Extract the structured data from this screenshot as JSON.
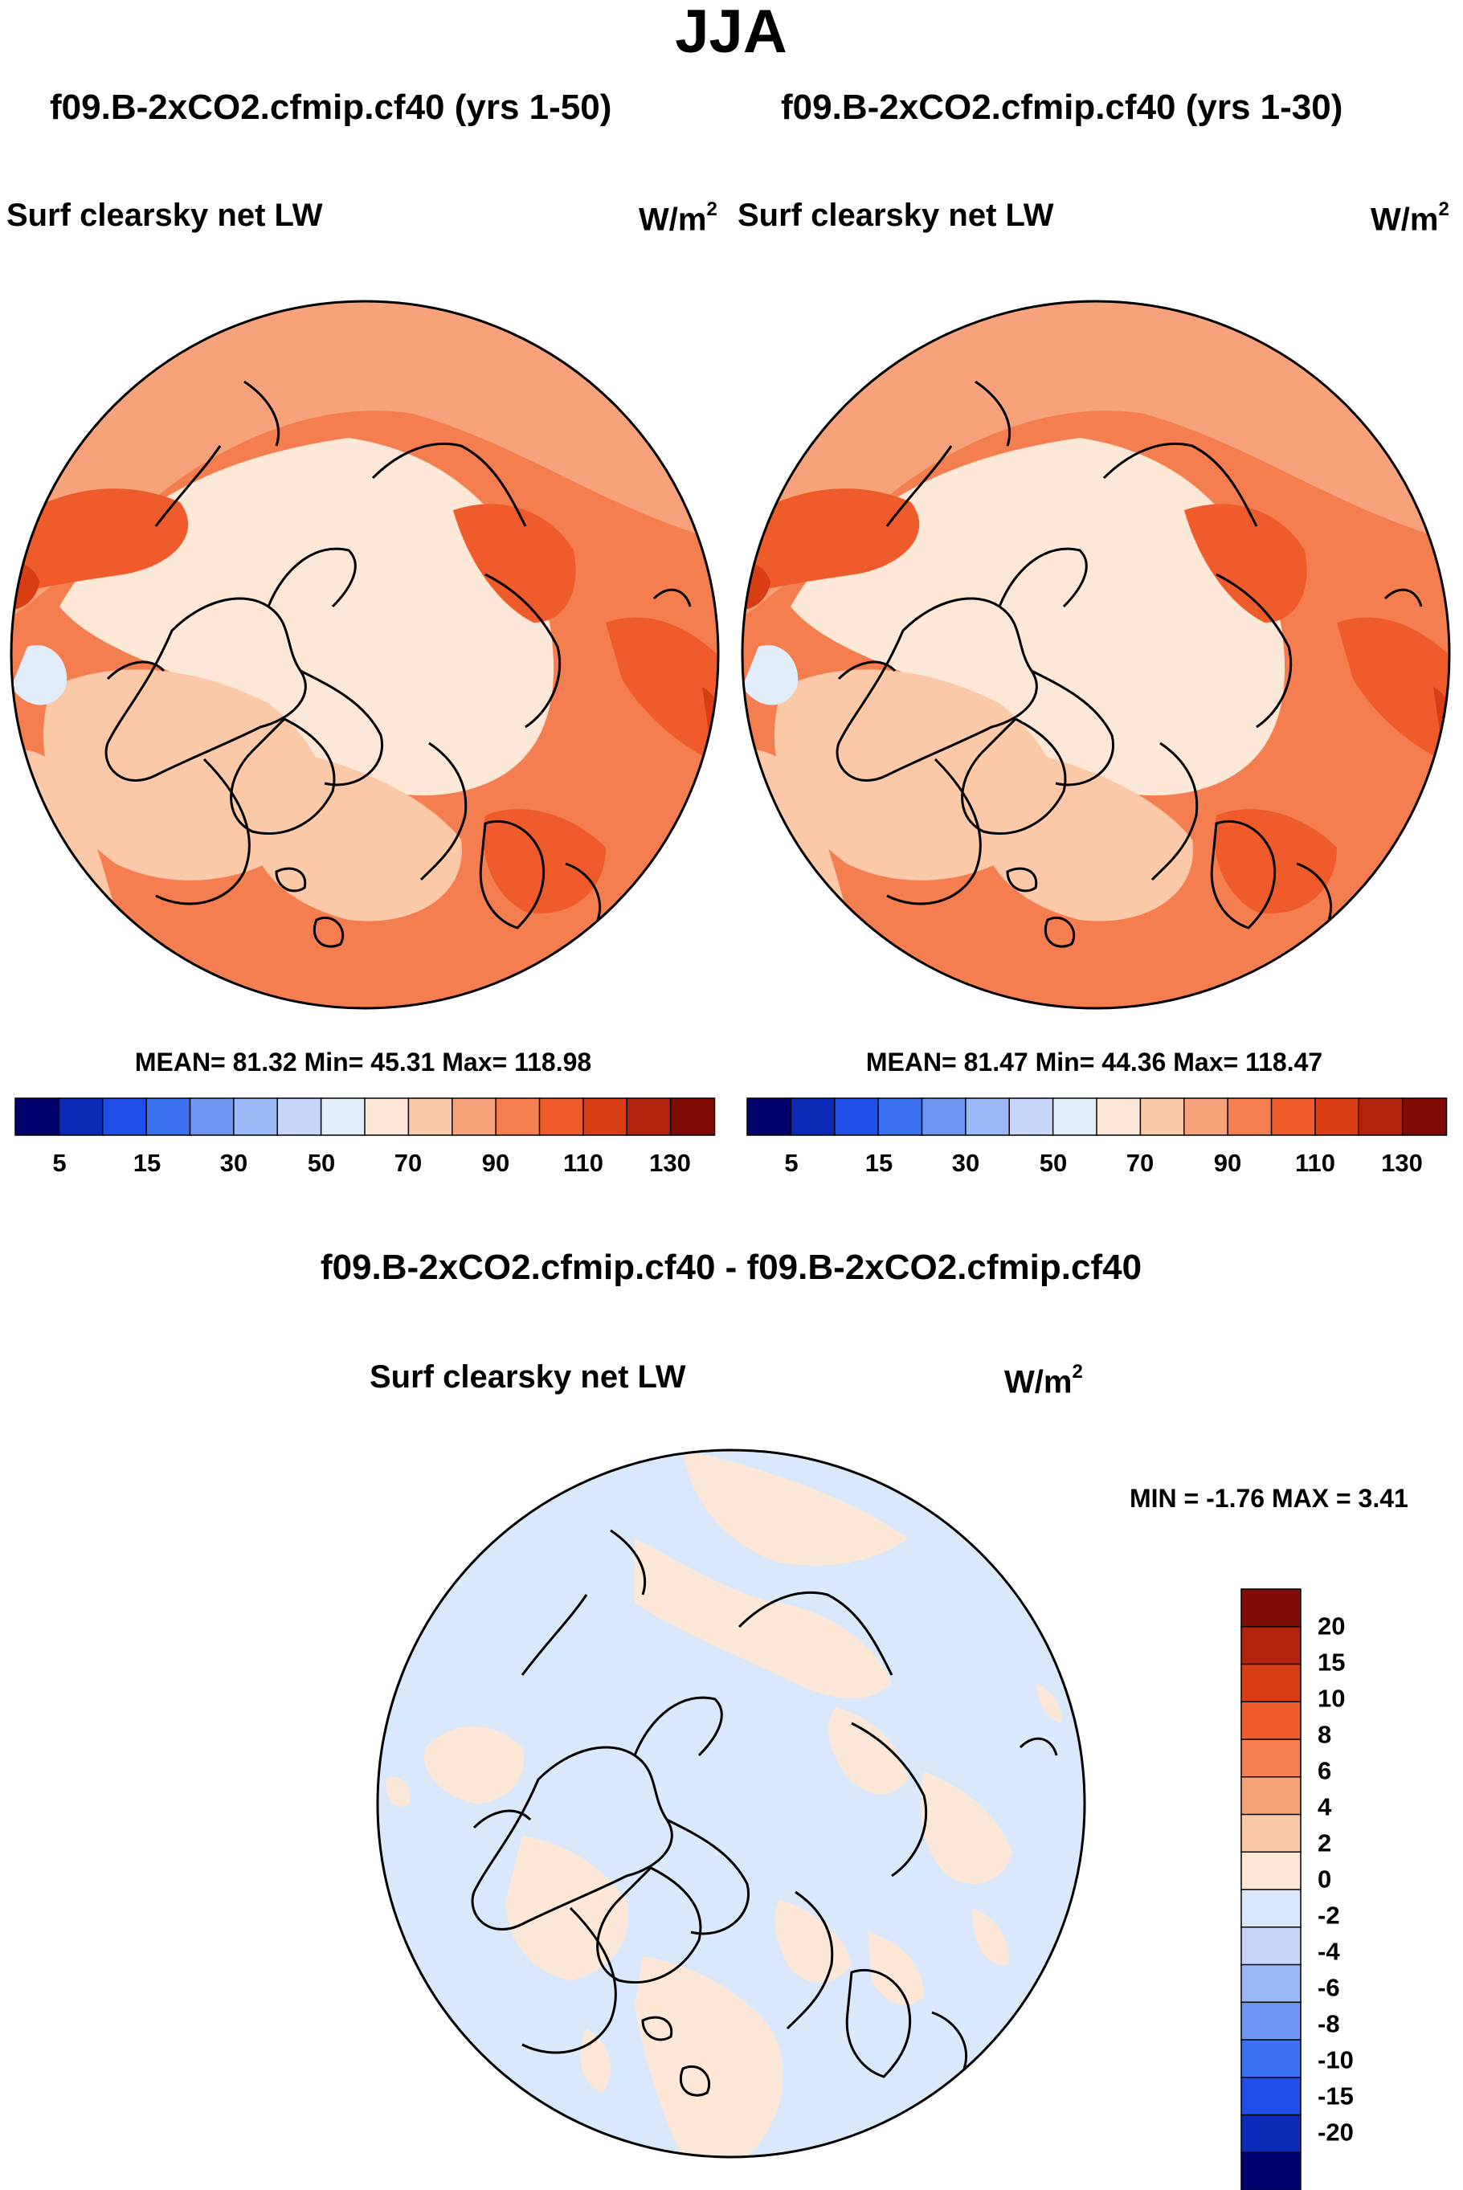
{
  "page_title": "JJA",
  "palette_absolute": [
    "#02026f",
    "#0b2ab7",
    "#1f4fe8",
    "#3b72f1",
    "#6e97f4",
    "#9db8f7",
    "#c6d6fa",
    "#e2edfc",
    "#fde8d8",
    "#fbc8a8",
    "#f8a27c",
    "#f57e51",
    "#ef5b2a",
    "#d83d13",
    "#b3220a",
    "#800d05"
  ],
  "palette_difference": [
    "#02026f",
    "#0b2ab7",
    "#1f4fe8",
    "#3b72f1",
    "#6e97f4",
    "#9db8f7",
    "#c6d6fa",
    "#d9e9fb",
    "#fde8d8",
    "#fbc8a8",
    "#f8a27c",
    "#f57e51",
    "#ef5b2a",
    "#d83d13",
    "#b3220a",
    "#800d05"
  ],
  "panels": [
    {
      "case_title": "f09.B-2xCO2.cfmip.cf40 (yrs 1-50)",
      "variable": "Surf clearsky net LW",
      "units": "W/m",
      "units_sup": "2",
      "stats_text": "MEAN=  81.32  Min=  45.31  Max= 118.98"
    },
    {
      "case_title": "f09.B-2xCO2.cfmip.cf40 (yrs 1-30)",
      "variable": "Surf clearsky net LW",
      "units": "W/m",
      "units_sup": "2",
      "stats_text": "MEAN=  81.47  Min=  44.36  Max= 118.47"
    }
  ],
  "difference": {
    "title": "f09.B-2xCO2.cfmip.cf40 - f09.B-2xCO2.cfmip.cf40",
    "variable": "Surf clearsky net LW",
    "units": "W/m",
    "units_sup": "2",
    "minmax_text": "MIN =  -1.76 MAX =   3.41"
  },
  "chart_data": [
    {
      "type": "heatmap",
      "projection": "north polar stereographic",
      "title": "f09.B-2xCO2.cfmip.cf40 (yrs 1-50)",
      "subtitle": "JJA",
      "variable": "Surf clearsky net LW",
      "units": "W/m^2",
      "mean": 81.32,
      "min": 45.31,
      "max": 118.98,
      "colorbar_ticks": [
        "5",
        "15",
        "30",
        "50",
        "70",
        "90",
        "110",
        "130"
      ]
    },
    {
      "type": "heatmap",
      "projection": "north polar stereographic",
      "title": "f09.B-2xCO2.cfmip.cf40 (yrs 1-30)",
      "subtitle": "JJA",
      "variable": "Surf clearsky net LW",
      "units": "W/m^2",
      "mean": 81.47,
      "min": 44.36,
      "max": 118.47,
      "colorbar_ticks": [
        "5",
        "15",
        "30",
        "50",
        "70",
        "90",
        "110",
        "130"
      ]
    },
    {
      "type": "heatmap",
      "projection": "north polar stereographic",
      "title": "f09.B-2xCO2.cfmip.cf40 - f09.B-2xCO2.cfmip.cf40",
      "variable": "Surf clearsky net LW",
      "units": "W/m^2",
      "min": -1.76,
      "max": 3.41,
      "colorbar_ticks": [
        "20",
        "15",
        "10",
        "8",
        "6",
        "4",
        "2",
        "0",
        "-2",
        "-4",
        "-6",
        "-8",
        "-10",
        "-15",
        "-20"
      ]
    }
  ]
}
